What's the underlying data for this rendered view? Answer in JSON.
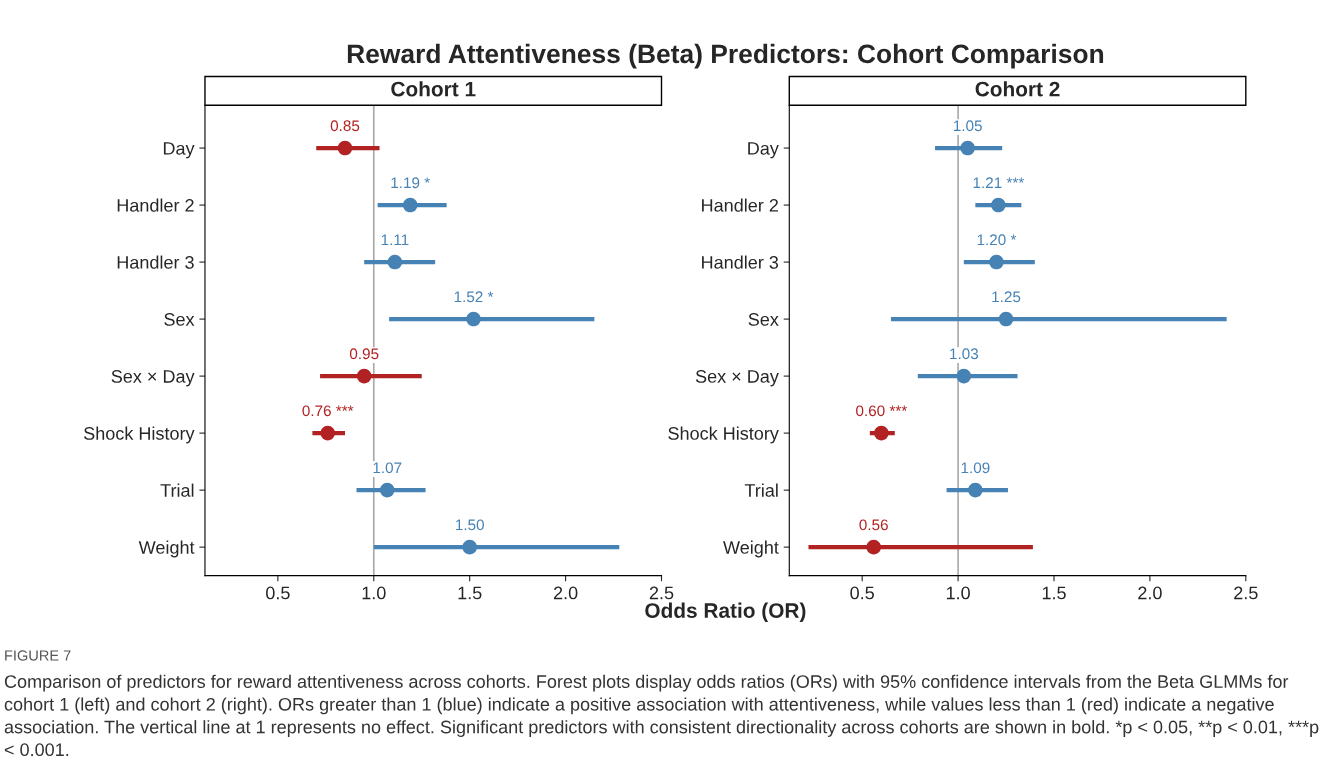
{
  "chart_data": [
    {
      "type": "scatter",
      "orientation": "horizontal",
      "title": "Reward Attentiveness (Beta) Predictors: Cohort Comparison",
      "subtitle": "Cohort 1",
      "xlabel": "Odds Ratio (OR)",
      "categories": [
        "Day",
        "Handler 2",
        "Handler 3",
        "Sex",
        "Sex × Day",
        "Shock History",
        "Trial",
        "Weight"
      ],
      "values": [
        0.85,
        1.19,
        1.11,
        1.52,
        0.95,
        0.76,
        1.07,
        1.5
      ],
      "errors": [
        [
          0.7,
          1.03
        ],
        [
          1.02,
          1.38
        ],
        [
          0.95,
          1.32
        ],
        [
          1.08,
          2.15
        ],
        [
          0.72,
          1.25
        ],
        [
          0.68,
          0.85
        ],
        [
          0.91,
          1.27
        ],
        [
          1.0,
          2.28
        ]
      ],
      "colors": [
        "#b22222",
        "#4682b4",
        "#4682b4",
        "#4682b4",
        "#b22222",
        "#b22222",
        "#4682b4",
        "#4682b4"
      ],
      "value_labels": [
        "0.85",
        "1.19 *",
        "1.11",
        "1.52 *",
        "0.95",
        "0.76 ***",
        "1.07",
        "1.50"
      ],
      "xlim": [
        0.12,
        2.5
      ],
      "xticks": [
        {
          "value": 0.5,
          "label": "0.5"
        },
        {
          "value": 1.0,
          "label": "1.0"
        },
        {
          "value": 1.5,
          "label": "1.5"
        },
        {
          "value": 2.0,
          "label": "2.0"
        },
        {
          "value": 2.5,
          "label": "2.5"
        }
      ],
      "ref_lines": [
        {
          "axis": "x",
          "value": 1,
          "color": "#aaaaaa"
        }
      ],
      "annotations": [
        "FIGURE 7",
        "Comparison of predictors for reward attentiveness across cohorts. Forest plots display odds ratios (ORs) with 95% confidence intervals from the Beta GLMMs for cohort 1 (left) and cohort 2 (right). ORs greater than 1 (blue) indicate a positive association with attentiveness, while values less than 1 (red) indicate a negative association. The vertical line at 1 represents no effect. Significant predictors with consistent directionality across cohorts are shown in bold. *p < 0.05, **p < 0.01, ***p < 0.001."
      ]
    },
    {
      "type": "scatter",
      "orientation": "horizontal",
      "subtitle": "Cohort 2",
      "categories": [
        "Day",
        "Handler 2",
        "Handler 3",
        "Sex",
        "Sex × Day",
        "Shock History",
        "Trial",
        "Weight"
      ],
      "values": [
        1.05,
        1.21,
        1.2,
        1.25,
        1.03,
        0.6,
        1.09,
        0.56
      ],
      "errors": [
        [
          0.88,
          1.23
        ],
        [
          1.09,
          1.33
        ],
        [
          1.03,
          1.4
        ],
        [
          0.65,
          2.4
        ],
        [
          0.79,
          1.31
        ],
        [
          0.54,
          0.67
        ],
        [
          0.94,
          1.26
        ],
        [
          0.22,
          1.39
        ]
      ],
      "colors": [
        "#4682b4",
        "#4682b4",
        "#4682b4",
        "#4682b4",
        "#4682b4",
        "#b22222",
        "#4682b4",
        "#b22222"
      ],
      "value_labels": [
        "1.05",
        "1.21 ***",
        "1.20 *",
        "1.25",
        "1.03",
        "0.60 ***",
        "1.09",
        "0.56"
      ],
      "xlim": [
        0.12,
        2.5
      ],
      "xticks": [
        {
          "value": 0.5,
          "label": "0.5"
        },
        {
          "value": 1.0,
          "label": "1.0"
        },
        {
          "value": 1.5,
          "label": "1.5"
        },
        {
          "value": 2.0,
          "label": "2.0"
        },
        {
          "value": 2.5,
          "label": "2.5"
        }
      ],
      "ref_lines": [
        {
          "axis": "x",
          "value": 1,
          "color": "#aaaaaa"
        }
      ]
    }
  ]
}
